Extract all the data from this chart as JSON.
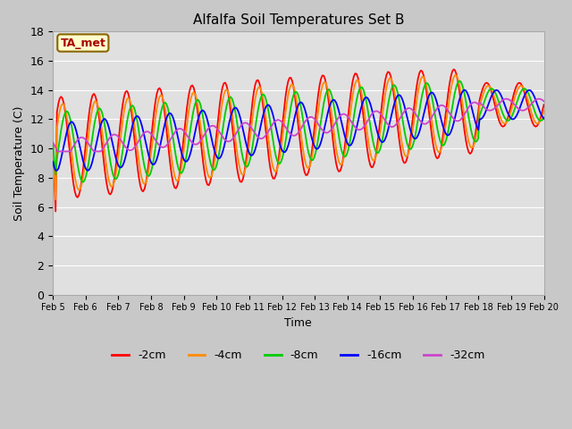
{
  "title": "Alfalfa Soil Temperatures Set B",
  "xlabel": "Time",
  "ylabel": "Soil Temperature (C)",
  "annotation": "TA_met",
  "ylim": [
    0,
    18
  ],
  "yticks": [
    0,
    2,
    4,
    6,
    8,
    10,
    12,
    14,
    16,
    18
  ],
  "x_labels": [
    "Feb 5",
    "Feb 6",
    "Feb 7",
    "Feb 8",
    "Feb 9",
    "Feb 10",
    "Feb 11",
    "Feb 12",
    "Feb 13",
    "Feb 14",
    "Feb 15",
    "Feb 16",
    "Feb 17",
    "Feb 18",
    "Feb 19",
    "Feb 20"
  ],
  "colors": {
    "-2cm": "#ff0000",
    "-4cm": "#ff8c00",
    "-8cm": "#00cc00",
    "-16cm": "#0000ff",
    "-32cm": "#cc44cc"
  },
  "legend_labels": [
    "-2cm",
    "-4cm",
    "-8cm",
    "-16cm",
    "-32cm"
  ],
  "fig_bg": "#c8c8c8",
  "ax_bg": "#e0e0e0",
  "grid_color": "#ffffff",
  "n_points": 360
}
